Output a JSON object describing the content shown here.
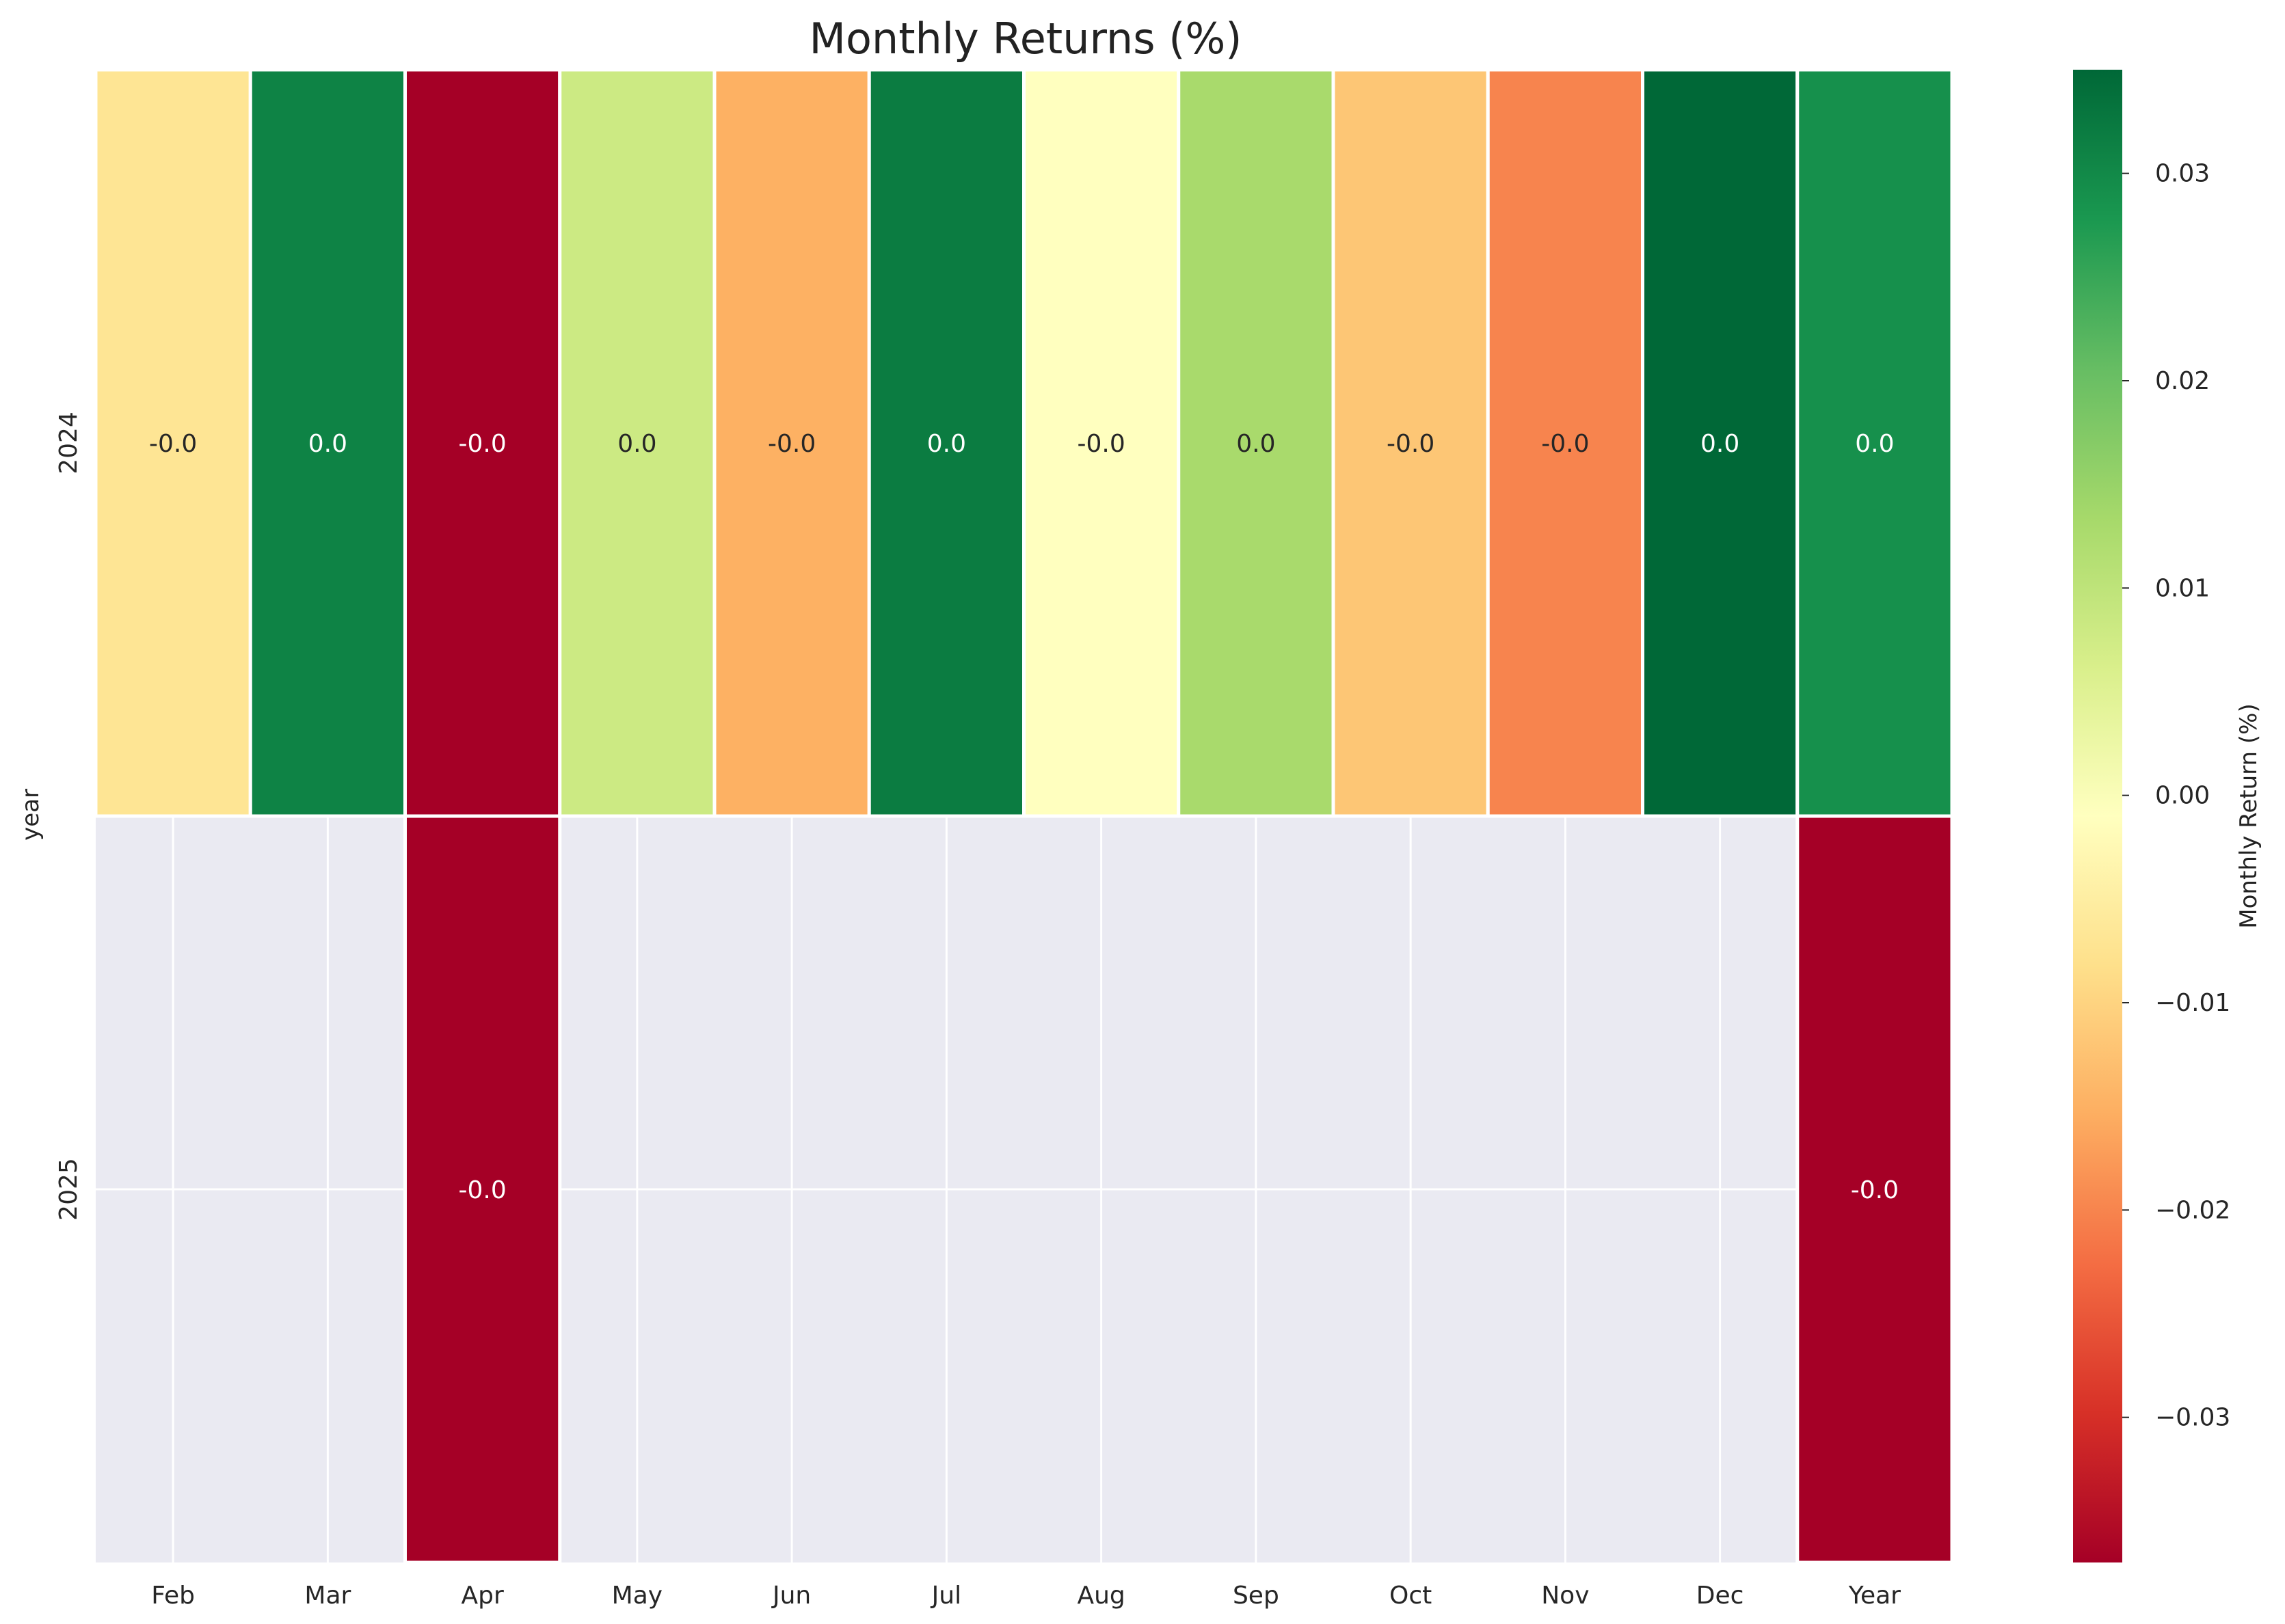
{
  "chart_data": {
    "type": "heatmap",
    "title": "Monthly Returns (%)",
    "xlabel": "",
    "ylabel": "year",
    "x_categories": [
      "Feb",
      "Mar",
      "Apr",
      "May",
      "Jun",
      "Jul",
      "Aug",
      "Sep",
      "Oct",
      "Nov",
      "Dec",
      "Year"
    ],
    "y_categories": [
      "2024",
      "2025"
    ],
    "values": [
      [
        -0.007,
        0.031,
        -0.037,
        0.008,
        -0.015,
        0.032,
        -0.001,
        0.013,
        -0.012,
        -0.02,
        0.035,
        0.029
      ],
      [
        null,
        null,
        -0.037,
        null,
        null,
        null,
        null,
        null,
        null,
        null,
        null,
        -0.037
      ]
    ],
    "annotations": [
      [
        "-0.0",
        "0.0",
        "-0.0",
        "0.0",
        "-0.0",
        "0.0",
        "-0.0",
        "0.0",
        "-0.0",
        "-0.0",
        "0.0",
        "0.0"
      ],
      [
        "",
        "",
        "-0.0",
        "",
        "",
        "",
        "",
        "",
        "",
        "",
        "",
        "-0.0"
      ]
    ],
    "colormap": "RdYlGn",
    "vmin": -0.037,
    "vmax": 0.035,
    "missing_color": "#eaeaf2",
    "grid": true,
    "colorbar": {
      "label": "Monthly Return (%)",
      "ticks": [
        -0.03,
        -0.02,
        -0.01,
        0.0,
        0.01,
        0.02,
        0.03
      ],
      "tick_labels": [
        "−0.03",
        "−0.02",
        "−0.01",
        "0.00",
        "0.01",
        "0.02",
        "0.03"
      ],
      "placement": "right"
    }
  }
}
